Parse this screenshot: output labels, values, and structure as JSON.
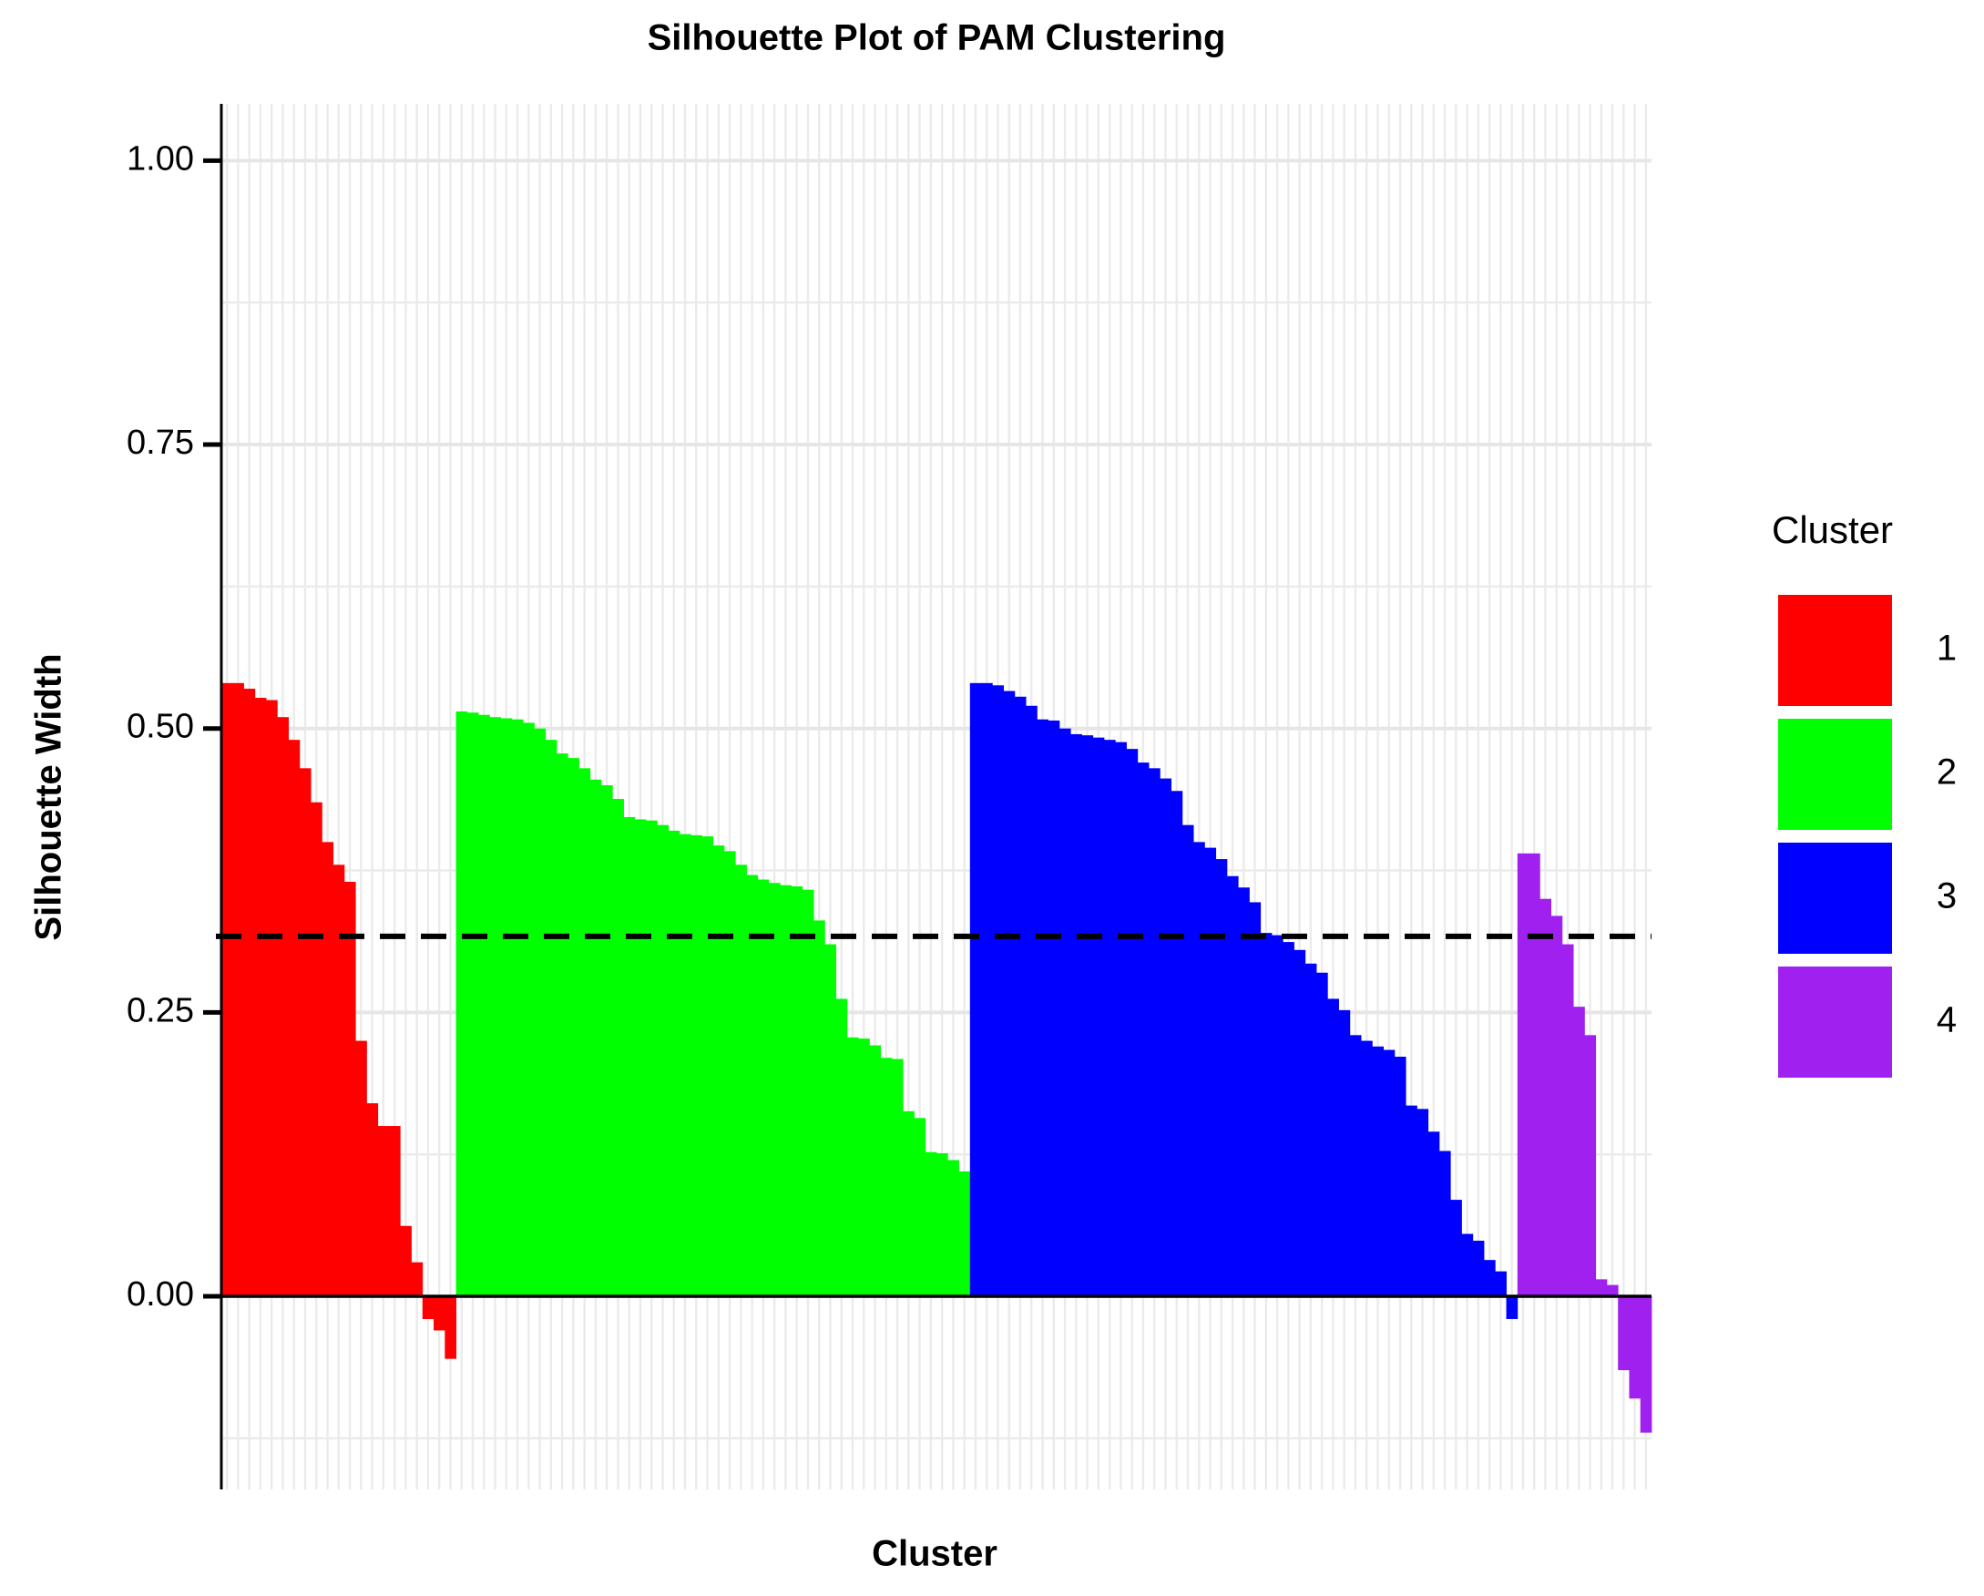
{
  "chart_data": {
    "type": "silhouette",
    "title": "Silhouette Plot of PAM Clustering",
    "x_label": "Cluster",
    "y_label": "Silhouette Width",
    "legend_title": "Cluster",
    "legend_position": "right",
    "ylim": [
      -0.17,
      1.05
    ],
    "yticks": [
      {
        "value": 0,
        "label": "0.00"
      },
      {
        "value": 0.25,
        "label": "0.25"
      },
      {
        "value": 0.5,
        "label": "0.50"
      },
      {
        "value": 0.75,
        "label": "0.75"
      },
      {
        "value": 1,
        "label": "1.00"
      }
    ],
    "y_minor_grid": [
      -0.125,
      0.125,
      0.375,
      0.625,
      0.875
    ],
    "grid": true,
    "hline": 0.317,
    "hline_style": "dashed",
    "series": [
      {
        "name": "1",
        "color": "#ff0000",
        "values": [
          0.54,
          0.54,
          0.535,
          0.527,
          0.525,
          0.51,
          0.49,
          0.465,
          0.435,
          0.4,
          0.38,
          0.365,
          0.225,
          0.17,
          0.15,
          0.15,
          0.062,
          0.03,
          -0.02,
          -0.03,
          -0.055
        ]
      },
      {
        "name": "2",
        "color": "#00ff00",
        "values": [
          0.515,
          0.514,
          0.512,
          0.51,
          0.509,
          0.508,
          0.505,
          0.5,
          0.49,
          0.478,
          0.474,
          0.465,
          0.455,
          0.45,
          0.438,
          0.422,
          0.42,
          0.419,
          0.415,
          0.41,
          0.407,
          0.406,
          0.405,
          0.397,
          0.392,
          0.38,
          0.371,
          0.367,
          0.364,
          0.362,
          0.361,
          0.358,
          0.331,
          0.31,
          0.262,
          0.228,
          0.227,
          0.221,
          0.21,
          0.209,
          0.163,
          0.157,
          0.127,
          0.126,
          0.12,
          0.11
        ]
      },
      {
        "name": "3",
        "color": "#0000ff",
        "values": [
          0.54,
          0.54,
          0.538,
          0.533,
          0.528,
          0.52,
          0.508,
          0.507,
          0.5,
          0.495,
          0.494,
          0.492,
          0.49,
          0.488,
          0.482,
          0.47,
          0.465,
          0.456,
          0.445,
          0.415,
          0.4,
          0.395,
          0.385,
          0.37,
          0.36,
          0.347,
          0.32,
          0.318,
          0.312,
          0.305,
          0.293,
          0.285,
          0.262,
          0.252,
          0.23,
          0.225,
          0.22,
          0.217,
          0.211,
          0.168,
          0.165,
          0.145,
          0.128,
          0.085,
          0.055,
          0.049,
          0.032,
          0.022,
          -0.02
        ]
      },
      {
        "name": "4",
        "color": "#a020f0",
        "values": [
          0.39,
          0.39,
          0.35,
          0.335,
          0.31,
          0.255,
          0.23,
          0.015,
          0.01,
          -0.065,
          -0.09,
          -0.12
        ]
      }
    ]
  }
}
